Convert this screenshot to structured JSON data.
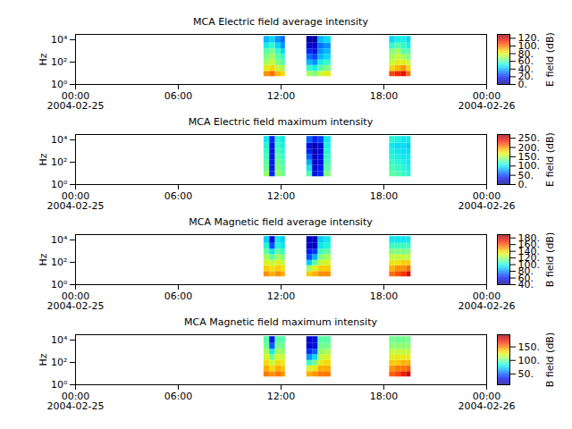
{
  "chart_data": [
    {
      "type": "heatmap",
      "title": "MCA  Electric field average intensity",
      "y_label": "Hz",
      "color": "jet",
      "log": "y",
      "xlim": [
        "2004-02-25T00:00",
        "2004-02-26T00:00"
      ],
      "xticks": [
        {
          "value": "2004-02-25T00:00",
          "label": "00:00\n2004-02-25"
        },
        {
          "value": "2004-02-25T06:00",
          "label": "06:00"
        },
        {
          "value": "2004-02-25T12:00",
          "label": "12:00"
        },
        {
          "value": "2004-02-25T18:00",
          "label": "18:00"
        },
        {
          "value": "2004-02-26T00:00",
          "label": "00:00\n2004-02-26"
        }
      ],
      "ylim": [
        1,
        30000
      ],
      "yticks": [
        {
          "value": 1,
          "label": "10⁰"
        },
        {
          "value": 100,
          "label": "10²"
        },
        {
          "value": 10000,
          "label": "10⁴"
        }
      ],
      "y_bins": [
        5,
        15,
        50,
        150,
        500,
        1500,
        5000,
        20000
      ],
      "color_label": "E field (dB)",
      "color_range": [
        0,
        130
      ],
      "color_ticks": [
        {
          "value": 0,
          "label": "0."
        },
        {
          "value": 20,
          "label": "20."
        },
        {
          "value": 40,
          "label": "40."
        },
        {
          "value": 60,
          "label": "60."
        },
        {
          "value": 80,
          "label": "80."
        },
        {
          "value": 100,
          "label": "100."
        },
        {
          "value": 120,
          "label": "120."
        }
      ],
      "columns": [
        {
          "start": "2004-02-25T11:00",
          "end": "2004-02-25T11:20",
          "values": [
            95,
            80,
            70,
            65,
            60,
            50,
            40
          ]
        },
        {
          "start": "2004-02-25T11:20",
          "end": "2004-02-25T11:40",
          "values": [
            100,
            85,
            75,
            70,
            65,
            55,
            45
          ]
        },
        {
          "start": "2004-02-25T11:40",
          "end": "2004-02-25T12:00",
          "values": [
            90,
            75,
            65,
            60,
            55,
            45,
            35
          ]
        },
        {
          "start": "2004-02-25T12:00",
          "end": "2004-02-25T12:15",
          "values": [
            85,
            70,
            60,
            55,
            45,
            35,
            30
          ]
        },
        {
          "start": "2004-02-25T13:30",
          "end": "2004-02-25T13:50",
          "values": [
            70,
            55,
            40,
            30,
            20,
            10,
            5
          ]
        },
        {
          "start": "2004-02-25T13:50",
          "end": "2004-02-25T14:10",
          "values": [
            65,
            50,
            35,
            25,
            15,
            10,
            5
          ]
        },
        {
          "start": "2004-02-25T14:10",
          "end": "2004-02-25T14:30",
          "values": [
            75,
            60,
            50,
            40,
            35,
            30,
            40
          ]
        },
        {
          "start": "2004-02-25T14:30",
          "end": "2004-02-25T14:55",
          "values": [
            80,
            65,
            55,
            45,
            40,
            35,
            45
          ]
        },
        {
          "start": "2004-02-25T18:20",
          "end": "2004-02-25T18:40",
          "values": [
            105,
            85,
            75,
            70,
            65,
            55,
            45
          ]
        },
        {
          "start": "2004-02-25T18:40",
          "end": "2004-02-25T19:00",
          "values": [
            110,
            90,
            80,
            75,
            70,
            60,
            50
          ]
        },
        {
          "start": "2004-02-25T19:00",
          "end": "2004-02-25T19:20",
          "values": [
            115,
            95,
            80,
            70,
            60,
            55,
            50
          ]
        },
        {
          "start": "2004-02-25T19:20",
          "end": "2004-02-25T19:35",
          "values": [
            100,
            85,
            75,
            65,
            60,
            50,
            45
          ]
        }
      ]
    },
    {
      "type": "heatmap",
      "title": "MCA  Electric field maximum intensity",
      "y_label": "Hz",
      "color": "jet",
      "log": "y",
      "xlim": [
        "2004-02-25T00:00",
        "2004-02-26T00:00"
      ],
      "xticks": [
        {
          "value": "2004-02-25T00:00",
          "label": "00:00\n2004-02-25"
        },
        {
          "value": "2004-02-25T06:00",
          "label": "06:00"
        },
        {
          "value": "2004-02-25T12:00",
          "label": "12:00"
        },
        {
          "value": "2004-02-25T18:00",
          "label": "18:00"
        },
        {
          "value": "2004-02-26T00:00",
          "label": "00:00\n2004-02-26"
        }
      ],
      "ylim": [
        1,
        30000
      ],
      "yticks": [
        {
          "value": 1,
          "label": "10⁰"
        },
        {
          "value": 100,
          "label": "10²"
        },
        {
          "value": 10000,
          "label": "10⁴"
        }
      ],
      "y_bins": [
        5,
        15,
        50,
        150,
        500,
        1500,
        5000,
        20000
      ],
      "color_label": "E field (dB)",
      "color_range": [
        0,
        270
      ],
      "color_ticks": [
        {
          "value": 0,
          "label": "0."
        },
        {
          "value": 50,
          "label": "50."
        },
        {
          "value": 100,
          "label": "100."
        },
        {
          "value": 150,
          "label": "150."
        },
        {
          "value": 200,
          "label": "200."
        },
        {
          "value": 250,
          "label": "250."
        }
      ],
      "columns": [
        {
          "start": "2004-02-25T11:00",
          "end": "2004-02-25T11:20",
          "values": [
            140,
            130,
            125,
            120,
            115,
            110,
            100
          ]
        },
        {
          "start": "2004-02-25T11:20",
          "end": "2004-02-25T11:40",
          "values": [
            40,
            35,
            35,
            30,
            30,
            30,
            40
          ]
        },
        {
          "start": "2004-02-25T11:40",
          "end": "2004-02-25T12:00",
          "values": [
            140,
            135,
            130,
            125,
            120,
            115,
            110
          ]
        },
        {
          "start": "2004-02-25T12:00",
          "end": "2004-02-25T12:15",
          "values": [
            130,
            125,
            120,
            115,
            110,
            105,
            100
          ]
        },
        {
          "start": "2004-02-25T13:30",
          "end": "2004-02-25T13:50",
          "values": [
            120,
            100,
            80,
            60,
            40,
            30,
            60
          ]
        },
        {
          "start": "2004-02-25T13:50",
          "end": "2004-02-25T14:10",
          "values": [
            30,
            25,
            20,
            20,
            15,
            15,
            40
          ]
        },
        {
          "start": "2004-02-25T14:10",
          "end": "2004-02-25T14:30",
          "values": [
            40,
            35,
            30,
            30,
            25,
            25,
            50
          ]
        },
        {
          "start": "2004-02-25T14:30",
          "end": "2004-02-25T14:55",
          "values": [
            135,
            125,
            120,
            115,
            110,
            105,
            100
          ]
        },
        {
          "start": "2004-02-25T18:20",
          "end": "2004-02-25T18:40",
          "values": [
            125,
            120,
            115,
            110,
            105,
            100,
            110
          ]
        },
        {
          "start": "2004-02-25T18:40",
          "end": "2004-02-25T19:00",
          "values": [
            120,
            115,
            110,
            105,
            100,
            95,
            105
          ]
        },
        {
          "start": "2004-02-25T19:00",
          "end": "2004-02-25T19:20",
          "values": [
            115,
            110,
            105,
            100,
            95,
            95,
            100
          ]
        },
        {
          "start": "2004-02-25T19:20",
          "end": "2004-02-25T19:35",
          "values": [
            110,
            105,
            100,
            100,
            95,
            90,
            100
          ]
        }
      ]
    },
    {
      "type": "heatmap",
      "title": "MCA  Magnetic field average intensity",
      "y_label": "Hz",
      "color": "jet",
      "log": "y",
      "xlim": [
        "2004-02-25T00:00",
        "2004-02-26T00:00"
      ],
      "xticks": [
        {
          "value": "2004-02-25T00:00",
          "label": "00:00\n2004-02-25"
        },
        {
          "value": "2004-02-25T06:00",
          "label": "06:00"
        },
        {
          "value": "2004-02-25T12:00",
          "label": "12:00"
        },
        {
          "value": "2004-02-25T18:00",
          "label": "18:00"
        },
        {
          "value": "2004-02-26T00:00",
          "label": "00:00\n2004-02-26"
        }
      ],
      "ylim": [
        1,
        30000
      ],
      "yticks": [
        {
          "value": 1,
          "label": "10⁰"
        },
        {
          "value": 100,
          "label": "10²"
        },
        {
          "value": 10000,
          "label": "10⁴"
        }
      ],
      "y_bins": [
        5,
        15,
        50,
        150,
        500,
        1500,
        5000,
        20000
      ],
      "color_label": "B field (dB)",
      "color_range": [
        40,
        190
      ],
      "color_ticks": [
        {
          "value": 40,
          "label": "40."
        },
        {
          "value": 60,
          "label": "60."
        },
        {
          "value": 80,
          "label": "80."
        },
        {
          "value": 100,
          "label": "100."
        },
        {
          "value": 120,
          "label": "120."
        },
        {
          "value": 140,
          "label": "140."
        },
        {
          "value": 160,
          "label": "160."
        },
        {
          "value": 180,
          "label": "180."
        }
      ],
      "columns": [
        {
          "start": "2004-02-25T11:00",
          "end": "2004-02-25T11:20",
          "values": [
            150,
            140,
            130,
            120,
            110,
            100,
            90
          ]
        },
        {
          "start": "2004-02-25T11:20",
          "end": "2004-02-25T11:40",
          "values": [
            145,
            135,
            125,
            110,
            95,
            70,
            55
          ]
        },
        {
          "start": "2004-02-25T11:40",
          "end": "2004-02-25T12:00",
          "values": [
            150,
            140,
            130,
            120,
            110,
            100,
            95
          ]
        },
        {
          "start": "2004-02-25T12:00",
          "end": "2004-02-25T12:15",
          "values": [
            145,
            135,
            125,
            115,
            105,
            95,
            90
          ]
        },
        {
          "start": "2004-02-25T13:30",
          "end": "2004-02-25T13:50",
          "values": [
            140,
            120,
            90,
            70,
            60,
            50,
            50
          ]
        },
        {
          "start": "2004-02-25T13:50",
          "end": "2004-02-25T14:10",
          "values": [
            145,
            130,
            110,
            85,
            65,
            50,
            50
          ]
        },
        {
          "start": "2004-02-25T14:10",
          "end": "2004-02-25T14:30",
          "values": [
            150,
            140,
            125,
            115,
            105,
            95,
            90
          ]
        },
        {
          "start": "2004-02-25T14:30",
          "end": "2004-02-25T14:55",
          "values": [
            150,
            140,
            130,
            120,
            110,
            100,
            95
          ]
        },
        {
          "start": "2004-02-25T18:20",
          "end": "2004-02-25T18:40",
          "values": [
            155,
            145,
            135,
            125,
            115,
            105,
            95
          ]
        },
        {
          "start": "2004-02-25T18:40",
          "end": "2004-02-25T19:00",
          "values": [
            160,
            150,
            135,
            125,
            115,
            105,
            95
          ]
        },
        {
          "start": "2004-02-25T19:00",
          "end": "2004-02-25T19:20",
          "values": [
            165,
            150,
            140,
            125,
            115,
            105,
            95
          ]
        },
        {
          "start": "2004-02-25T19:20",
          "end": "2004-02-25T19:35",
          "values": [
            175,
            155,
            140,
            125,
            115,
            105,
            95
          ]
        }
      ]
    },
    {
      "type": "heatmap",
      "title": "MCA  Magnetic field maximum intensity",
      "y_label": "Hz",
      "color": "jet",
      "log": "y",
      "xlim": [
        "2004-02-25T00:00",
        "2004-02-26T00:00"
      ],
      "xticks": [
        {
          "value": "2004-02-25T00:00",
          "label": "00:00\n2004-02-25"
        },
        {
          "value": "2004-02-25T06:00",
          "label": "06:00"
        },
        {
          "value": "2004-02-25T12:00",
          "label": "12:00"
        },
        {
          "value": "2004-02-25T18:00",
          "label": "18:00"
        },
        {
          "value": "2004-02-26T00:00",
          "label": "00:00\n2004-02-26"
        }
      ],
      "ylim": [
        1,
        30000
      ],
      "yticks": [
        {
          "value": 1,
          "label": "10⁰"
        },
        {
          "value": 100,
          "label": "10²"
        },
        {
          "value": 10000,
          "label": "10⁴"
        }
      ],
      "y_bins": [
        5,
        15,
        50,
        150,
        500,
        1500,
        5000,
        20000
      ],
      "color_label": "B field (dB)",
      "color_range": [
        10,
        195
      ],
      "color_ticks": [
        {
          "value": 50,
          "label": "50."
        },
        {
          "value": 100,
          "label": "100."
        },
        {
          "value": 150,
          "label": "150."
        }
      ],
      "columns": [
        {
          "start": "2004-02-25T11:00",
          "end": "2004-02-25T11:20",
          "values": [
            150,
            140,
            130,
            120,
            110,
            100,
            95
          ]
        },
        {
          "start": "2004-02-25T11:20",
          "end": "2004-02-25T11:40",
          "values": [
            145,
            130,
            115,
            100,
            80,
            50,
            35
          ]
        },
        {
          "start": "2004-02-25T11:40",
          "end": "2004-02-25T12:00",
          "values": [
            150,
            140,
            130,
            120,
            110,
            100,
            95
          ]
        },
        {
          "start": "2004-02-25T12:00",
          "end": "2004-02-25T12:15",
          "values": [
            145,
            135,
            125,
            115,
            105,
            100,
            95
          ]
        },
        {
          "start": "2004-02-25T13:30",
          "end": "2004-02-25T13:50",
          "values": [
            140,
            120,
            90,
            60,
            40,
            25,
            25
          ]
        },
        {
          "start": "2004-02-25T13:50",
          "end": "2004-02-25T14:10",
          "values": [
            145,
            125,
            100,
            75,
            50,
            30,
            30
          ]
        },
        {
          "start": "2004-02-25T14:10",
          "end": "2004-02-25T14:30",
          "values": [
            150,
            140,
            125,
            115,
            105,
            100,
            95
          ]
        },
        {
          "start": "2004-02-25T14:30",
          "end": "2004-02-25T14:55",
          "values": [
            150,
            140,
            130,
            120,
            110,
            100,
            95
          ]
        },
        {
          "start": "2004-02-25T18:20",
          "end": "2004-02-25T18:40",
          "values": [
            155,
            145,
            135,
            125,
            115,
            105,
            100
          ]
        },
        {
          "start": "2004-02-25T18:40",
          "end": "2004-02-25T19:00",
          "values": [
            160,
            150,
            135,
            125,
            115,
            105,
            100
          ]
        },
        {
          "start": "2004-02-25T19:00",
          "end": "2004-02-25T19:20",
          "values": [
            170,
            150,
            140,
            125,
            115,
            105,
            100
          ]
        },
        {
          "start": "2004-02-25T19:20",
          "end": "2004-02-25T19:35",
          "values": [
            180,
            155,
            140,
            125,
            115,
            105,
            100
          ]
        }
      ]
    }
  ]
}
